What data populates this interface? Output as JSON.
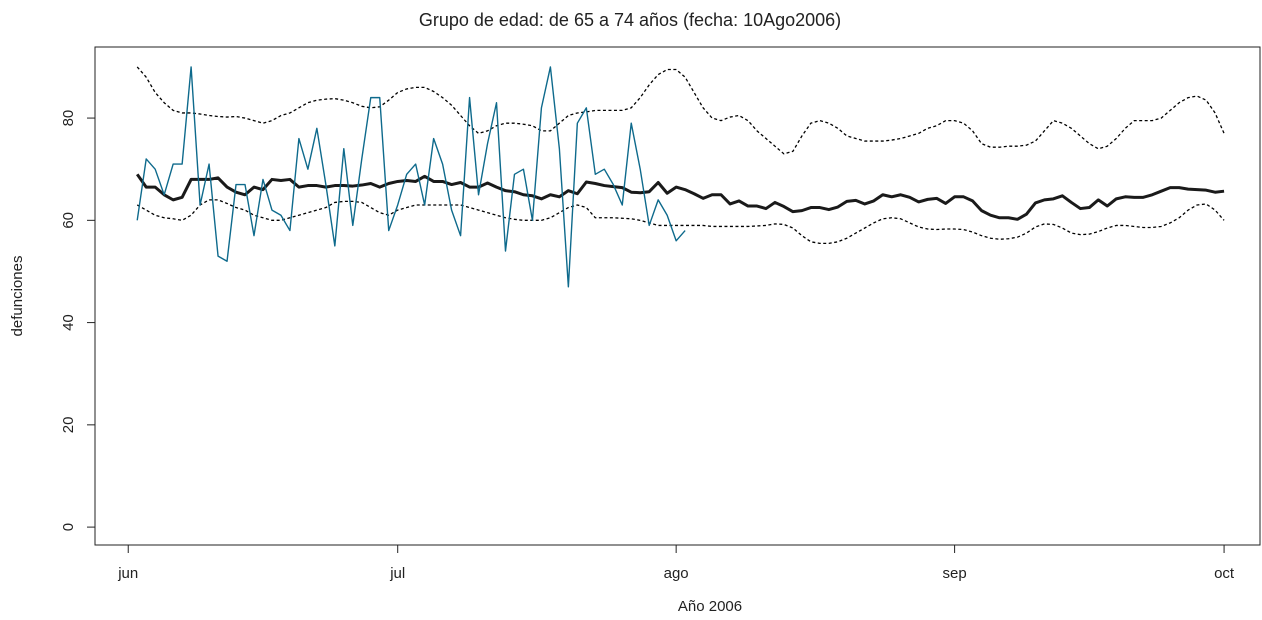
{
  "chart_data": {
    "type": "line",
    "title": "Grupo de edad: de 65 a 74 años (fecha: 10Ago2006)",
    "x_label": "Año 2006",
    "y_label": "defunciones",
    "xlim": [
      -3.7,
      126
    ],
    "ylim": [
      -3.5,
      93.9
    ],
    "xticks": [
      {
        "value": 0,
        "label": "jun"
      },
      {
        "value": 30,
        "label": "jul"
      },
      {
        "value": 61,
        "label": "ago"
      },
      {
        "value": 92,
        "label": "sep"
      },
      {
        "value": 122,
        "label": "oct"
      }
    ],
    "yticks": [
      0,
      20,
      40,
      60,
      80
    ],
    "x": [
      1,
      2,
      3,
      4,
      5,
      6,
      7,
      8,
      9,
      10,
      11,
      12,
      13,
      14,
      15,
      16,
      17,
      18,
      19,
      20,
      21,
      22,
      23,
      24,
      25,
      26,
      27,
      28,
      29,
      30,
      31,
      32,
      33,
      34,
      35,
      36,
      37,
      38,
      39,
      40,
      41,
      42,
      43,
      44,
      45,
      46,
      47,
      48,
      49,
      50,
      51,
      52,
      53,
      54,
      55,
      56,
      57,
      58,
      59,
      60,
      61,
      62,
      63,
      64,
      65,
      66,
      67,
      68,
      69,
      70,
      71,
      72,
      73,
      74,
      75,
      76,
      77,
      78,
      79,
      80,
      81,
      82,
      83,
      84,
      85,
      86,
      87,
      88,
      89,
      90,
      91,
      92,
      93,
      94,
      95,
      96,
      97,
      98,
      99,
      100,
      101,
      102,
      103,
      104,
      105,
      106,
      107,
      108,
      109,
      110,
      111,
      112,
      113,
      114,
      115,
      116,
      117,
      118,
      119,
      120,
      121,
      122
    ],
    "series": [
      {
        "color": "#000000",
        "linestyle": "dotted",
        "linewidth": 1.3,
        "values": [
          90,
          88,
          85,
          83,
          81.5,
          81,
          81,
          80.8,
          80.5,
          80.3,
          80.2,
          80.3,
          80,
          79.5,
          79,
          79.5,
          80.5,
          81,
          82,
          83,
          83.5,
          83.7,
          83.8,
          83.5,
          83,
          82.3,
          82,
          82.2,
          83.5,
          85,
          85.7,
          86,
          86,
          85.2,
          84,
          82.5,
          80.5,
          78.5,
          77,
          77.5,
          78.5,
          79,
          79,
          78.8,
          78.5,
          77.5,
          77.5,
          79,
          80.5,
          81,
          81.2,
          81.5,
          81.5,
          81.5,
          81.5,
          82,
          84,
          86.5,
          88.5,
          89.5,
          89.5,
          88,
          85,
          82,
          80,
          79.5,
          80.2,
          80.5,
          79.5,
          77.5,
          76,
          74.5,
          73,
          73.5,
          76.5,
          79,
          79.5,
          79,
          78,
          76.5,
          76,
          75.5,
          75.5,
          75.5,
          75.7,
          76,
          76.5,
          77,
          78,
          78.5,
          79.5,
          79.5,
          79,
          77.5,
          75,
          74.3,
          74.3,
          74.5,
          74.5,
          74.7,
          75.5,
          77.5,
          79.5,
          79,
          78,
          76.5,
          75,
          74,
          74.5,
          76,
          78,
          79.5,
          79.5,
          79.5,
          80,
          81.5,
          83,
          84,
          84.3,
          83.5,
          81,
          77
        ]
      },
      {
        "color": "#000000",
        "linestyle": "dotted",
        "linewidth": 1.3,
        "values": [
          63,
          62,
          61,
          60.5,
          60.3,
          60,
          61,
          63,
          64,
          64,
          63.3,
          62.5,
          62,
          61,
          60.5,
          60,
          60,
          60.5,
          61,
          61.5,
          62,
          62.5,
          63.5,
          63.7,
          63.7,
          63.5,
          62.5,
          61.5,
          61,
          62,
          62.5,
          63,
          63,
          63,
          63,
          63,
          63,
          62.5,
          62,
          61.5,
          61,
          60.5,
          60.2,
          60,
          60,
          60,
          60.5,
          61.5,
          62.5,
          63,
          62.5,
          60.5,
          60.5,
          60.5,
          60.4,
          60.3,
          60,
          59.5,
          59,
          59,
          59,
          59,
          59,
          59,
          58.8,
          58.8,
          58.8,
          58.8,
          58.8,
          58.9,
          59,
          59.3,
          59.2,
          58.5,
          57,
          55.8,
          55.5,
          55.5,
          55.8,
          56.5,
          57.5,
          58.5,
          59.5,
          60.3,
          60.5,
          60.3,
          59.5,
          58.7,
          58.3,
          58.2,
          58.3,
          58.3,
          58.2,
          57.7,
          57,
          56.5,
          56.3,
          56.4,
          56.7,
          57.5,
          58.7,
          59.3,
          59.2,
          58.5,
          57.5,
          57.2,
          57.3,
          57.8,
          58.5,
          59,
          59,
          58.8,
          58.6,
          58.6,
          58.8,
          59.5,
          60.5,
          62,
          63,
          63.2,
          62,
          60
        ]
      },
      {
        "color": "#1a1a1a",
        "linestyle": "solid",
        "linewidth": 3,
        "values": [
          69,
          66.5,
          66.5,
          65,
          64,
          64.5,
          68,
          68,
          68,
          68.3,
          66.5,
          65.5,
          65,
          66.5,
          66,
          68,
          67.8,
          68,
          66.5,
          66.8,
          66.8,
          66.5,
          66.8,
          66.8,
          66.7,
          66.9,
          67.2,
          66.5,
          67.2,
          67.6,
          67.8,
          67.6,
          68.6,
          67.6,
          67.6,
          67,
          67.4,
          66.5,
          66.5,
          67.3,
          66.5,
          65.8,
          65.6,
          65,
          64.8,
          64.2,
          65,
          64.6,
          65.8,
          65.2,
          67.5,
          67.2,
          66.8,
          66.6,
          66.4,
          65.5,
          65.4,
          65.6,
          67.4,
          65.3,
          66.5,
          66,
          65.2,
          64.3,
          65,
          65,
          63.2,
          63.8,
          62.8,
          62.8,
          62.3,
          63.5,
          62.7,
          61.7,
          61.9,
          62.5,
          62.5,
          62.1,
          62.6,
          63.7,
          63.9,
          63.2,
          63.8,
          65,
          64.6,
          65,
          64.5,
          63.6,
          64.1,
          64.3,
          63.3,
          64.6,
          64.6,
          63.8,
          61.9,
          61,
          60.5,
          60.5,
          60.2,
          61.2,
          63.4,
          64,
          64.2,
          64.8,
          63.5,
          62.3,
          62.5,
          64,
          62.8,
          64.2,
          64.6,
          64.5,
          64.5,
          65,
          65.7,
          66.4,
          66.4,
          66.1,
          66,
          65.9,
          65.5,
          65.7
        ]
      },
      {
        "color": "#0e6a8c",
        "linestyle": "solid",
        "linewidth": 1.4,
        "values": [
          60,
          72,
          70,
          65,
          71,
          71,
          90,
          63,
          71,
          53,
          52,
          67,
          67,
          57,
          68,
          62,
          61,
          58,
          76,
          70,
          78,
          67,
          55,
          74,
          59,
          72,
          84,
          84,
          58,
          63,
          69,
          71,
          63,
          76,
          71,
          62,
          57,
          84,
          65,
          75,
          83,
          54,
          69,
          70,
          60,
          82,
          90,
          74,
          47,
          79,
          82,
          69,
          70,
          67,
          63,
          79,
          70,
          59,
          64,
          61,
          56,
          58,
          null,
          null,
          null,
          null,
          null,
          null,
          null,
          null,
          null,
          null,
          null,
          null,
          null,
          null,
          null,
          null,
          null,
          null,
          null,
          null,
          null,
          null,
          null,
          null,
          null,
          null,
          null,
          null,
          null,
          null,
          null,
          null,
          null,
          null,
          null,
          null,
          null,
          null,
          null,
          null,
          null,
          null,
          null,
          null,
          null,
          null,
          null,
          null,
          null,
          null,
          null,
          null,
          null,
          null,
          null,
          null,
          null,
          null,
          null,
          null
        ]
      }
    ]
  }
}
